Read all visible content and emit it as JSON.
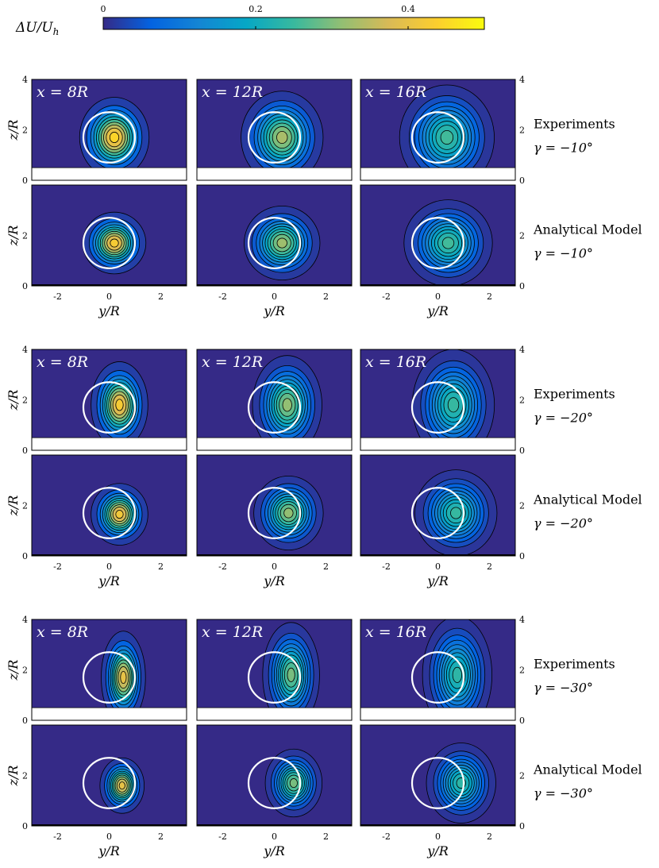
{
  "colorbar": {
    "label_main": "ΔU/U",
    "label_sub": "h",
    "ticks": [
      "0",
      "0.2",
      "0.4"
    ],
    "tick_values": [
      0,
      0.2,
      0.4
    ],
    "range": [
      0,
      0.5
    ],
    "colormap": "parula",
    "colors": [
      "#352a87",
      "#0363e1",
      "#1485d4",
      "#06a7c6",
      "#38b99e",
      "#92bf73",
      "#d9ba56",
      "#fcce2e",
      "#f9fb0e"
    ]
  },
  "chart_data": {
    "type": "heatmap",
    "description_free": true,
    "xlabel_main": "y",
    "xlabel_sub": "/R",
    "ylabel_main": "z",
    "ylabel_sub": "/R",
    "x_ticks": [
      "-2",
      "0",
      "2"
    ],
    "x_tick_values": [
      -2,
      0,
      2
    ],
    "y_ticks": [
      "0",
      "2",
      "4"
    ],
    "y_tick_values": [
      0,
      2,
      4
    ],
    "xlim": [
      -3,
      3
    ],
    "ylim": [
      0,
      4
    ],
    "rotor_circle": {
      "center_y": 0,
      "center_z": 1.7,
      "radius": 1
    },
    "columns": [
      "x = 8R",
      "x = 12R",
      "x = 16R"
    ],
    "column_x_over_R": [
      8,
      12,
      16
    ],
    "groups": [
      {
        "gamma": "γ = −10°",
        "gamma_deg": -10,
        "rows": [
          {
            "label": "Experiments",
            "kind": "experiment",
            "floor_z": 0.5,
            "panels": [
              {
                "x": 8,
                "peak": 0.47,
                "center_y": 0.2,
                "center_z": 1.7,
                "sigma_y": 0.55,
                "sigma_z": 0.65
              },
              {
                "x": 12,
                "peak": 0.35,
                "center_y": 0.3,
                "center_z": 1.7,
                "sigma_y": 0.65,
                "sigma_z": 0.75
              },
              {
                "x": 16,
                "peak": 0.27,
                "center_y": 0.35,
                "center_z": 1.7,
                "sigma_y": 0.75,
                "sigma_z": 0.85
              }
            ]
          },
          {
            "label": "Analytical Model",
            "kind": "model",
            "floor_z": 0,
            "panels": [
              {
                "x": 8,
                "peak": 0.45,
                "center_y": 0.2,
                "center_z": 1.7,
                "sigma_y": 0.5,
                "sigma_z": 0.5
              },
              {
                "x": 12,
                "peak": 0.34,
                "center_y": 0.3,
                "center_z": 1.7,
                "sigma_y": 0.6,
                "sigma_z": 0.6
              },
              {
                "x": 16,
                "peak": 0.27,
                "center_y": 0.4,
                "center_z": 1.7,
                "sigma_y": 0.7,
                "sigma_z": 0.7
              }
            ]
          }
        ]
      },
      {
        "gamma": "γ = −20°",
        "gamma_deg": -20,
        "rows": [
          {
            "label": "Experiments",
            "kind": "experiment",
            "floor_z": 0.5,
            "panels": [
              {
                "x": 8,
                "peak": 0.45,
                "center_y": 0.4,
                "center_z": 1.8,
                "sigma_y": 0.45,
                "sigma_z": 0.7
              },
              {
                "x": 12,
                "peak": 0.33,
                "center_y": 0.5,
                "center_z": 1.8,
                "sigma_y": 0.55,
                "sigma_z": 0.8
              },
              {
                "x": 16,
                "peak": 0.26,
                "center_y": 0.6,
                "center_z": 1.8,
                "sigma_y": 0.65,
                "sigma_z": 0.9
              }
            ]
          },
          {
            "label": "Analytical Model",
            "kind": "model",
            "floor_z": 0,
            "panels": [
              {
                "x": 8,
                "peak": 0.44,
                "center_y": 0.4,
                "center_z": 1.65,
                "sigma_y": 0.45,
                "sigma_z": 0.5
              },
              {
                "x": 12,
                "peak": 0.33,
                "center_y": 0.55,
                "center_z": 1.7,
                "sigma_y": 0.55,
                "sigma_z": 0.6
              },
              {
                "x": 16,
                "peak": 0.26,
                "center_y": 0.7,
                "center_z": 1.7,
                "sigma_y": 0.65,
                "sigma_z": 0.7
              }
            ]
          }
        ]
      },
      {
        "gamma": "γ = −30°",
        "gamma_deg": -30,
        "rows": [
          {
            "label": "Experiments",
            "kind": "experiment",
            "floor_z": 0.5,
            "panels": [
              {
                "x": 8,
                "peak": 0.42,
                "center_y": 0.55,
                "center_z": 1.7,
                "sigma_y": 0.35,
                "sigma_z": 0.75
              },
              {
                "x": 12,
                "peak": 0.31,
                "center_y": 0.65,
                "center_z": 1.8,
                "sigma_y": 0.45,
                "sigma_z": 0.85
              },
              {
                "x": 16,
                "peak": 0.25,
                "center_y": 0.75,
                "center_z": 1.8,
                "sigma_y": 0.55,
                "sigma_z": 0.95
              }
            ]
          },
          {
            "label": "Analytical Model",
            "kind": "model",
            "floor_z": 0,
            "panels": [
              {
                "x": 8,
                "peak": 0.42,
                "center_y": 0.5,
                "center_z": 1.6,
                "sigma_y": 0.35,
                "sigma_z": 0.45
              },
              {
                "x": 12,
                "peak": 0.31,
                "center_y": 0.75,
                "center_z": 1.7,
                "sigma_y": 0.45,
                "sigma_z": 0.55
              },
              {
                "x": 16,
                "peak": 0.25,
                "center_y": 0.9,
                "center_z": 1.7,
                "sigma_y": 0.55,
                "sigma_z": 0.65
              }
            ]
          }
        ]
      }
    ]
  }
}
